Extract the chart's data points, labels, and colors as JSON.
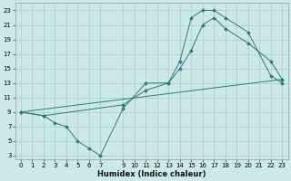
{
  "bg_color": "#cce8e8",
  "grid_color": "#aacccc",
  "line_color": "#2d7a7a",
  "line1_x": [
    0,
    2,
    3,
    4,
    5,
    6,
    7,
    9,
    11,
    13,
    14,
    15,
    16,
    17,
    18,
    20,
    22,
    23
  ],
  "line1_y": [
    9,
    8.5,
    7.5,
    7,
    5,
    4,
    3,
    9.5,
    13,
    13,
    16,
    22,
    23,
    23,
    22,
    20,
    14,
    13
  ],
  "line2_x": [
    0,
    2,
    9,
    11,
    13,
    14,
    15,
    16,
    17,
    18,
    20,
    22,
    23
  ],
  "line2_y": [
    9,
    8.5,
    10,
    12,
    13,
    15,
    17.5,
    21,
    22,
    20.5,
    18.5,
    16,
    13.5
  ],
  "line3_x": [
    0,
    23
  ],
  "line3_y": [
    9,
    13.5
  ],
  "xlabel": "Humidex (Indice chaleur)",
  "xlim": [
    -0.5,
    23.5
  ],
  "ylim": [
    2.5,
    24
  ],
  "xticks": [
    0,
    1,
    2,
    3,
    4,
    5,
    6,
    7,
    9,
    10,
    11,
    12,
    13,
    14,
    15,
    16,
    17,
    18,
    19,
    20,
    21,
    22,
    23
  ],
  "yticks": [
    3,
    5,
    7,
    9,
    11,
    13,
    15,
    17,
    19,
    21,
    23
  ],
  "xlabel_fontsize": 6,
  "tick_fontsize": 5,
  "marker_size": 2.0,
  "line_width": 0.7
}
